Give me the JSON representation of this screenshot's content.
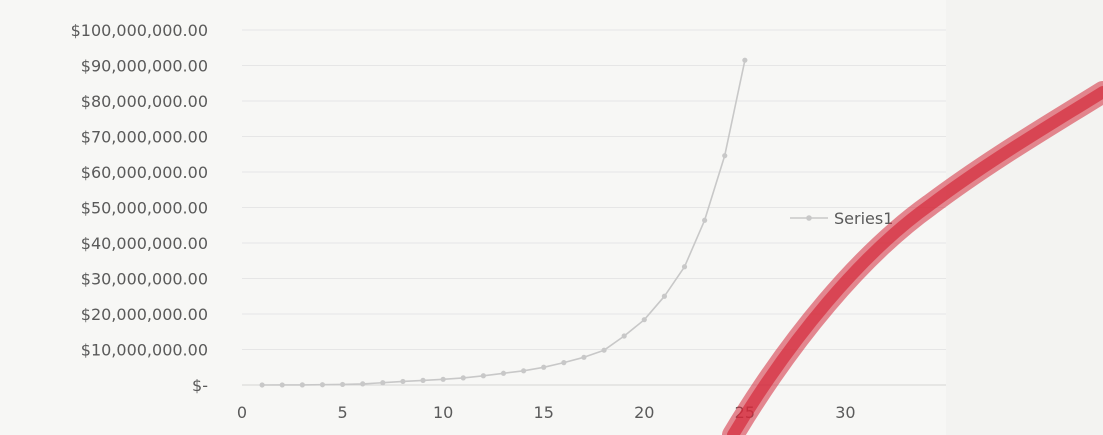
{
  "chart_data": {
    "type": "line",
    "title": "",
    "xlabel": "",
    "ylabel": "",
    "x_ticks": [
      "0",
      "5",
      "10",
      "15",
      "20",
      "25",
      "30"
    ],
    "y_ticks": [
      "$-",
      "$10,000,000.00",
      "$20,000,000.00",
      "$30,000,000.00",
      "$40,000,000.00",
      "$50,000,000.00",
      "$60,000,000.00",
      "$70,000,000.00",
      "$80,000,000.00",
      "$90,000,000.00",
      "$100,000,000.00"
    ],
    "xlim": [
      0,
      35
    ],
    "ylim": [
      0,
      100000000
    ],
    "grid": true,
    "legend_position": "right",
    "series": [
      {
        "name": "Series1",
        "color": "#c8c8c8",
        "x": [
          1,
          2,
          3,
          4,
          5,
          6,
          7,
          8,
          9,
          10,
          11,
          12,
          13,
          14,
          15,
          16,
          17,
          18,
          19,
          20,
          21,
          22,
          23,
          24,
          25
        ],
        "y": [
          10000,
          20000,
          40000,
          80000,
          160000,
          320000,
          640000,
          1000000,
          1300000,
          1600000,
          2000000,
          2600000,
          3300000,
          4000000,
          5000000,
          6300000,
          7800000,
          9800000,
          13800000,
          18400000,
          25000000,
          33300000,
          46400000,
          64600000,
          91500000
        ]
      }
    ],
    "annotation_color": "#d42a3a"
  }
}
